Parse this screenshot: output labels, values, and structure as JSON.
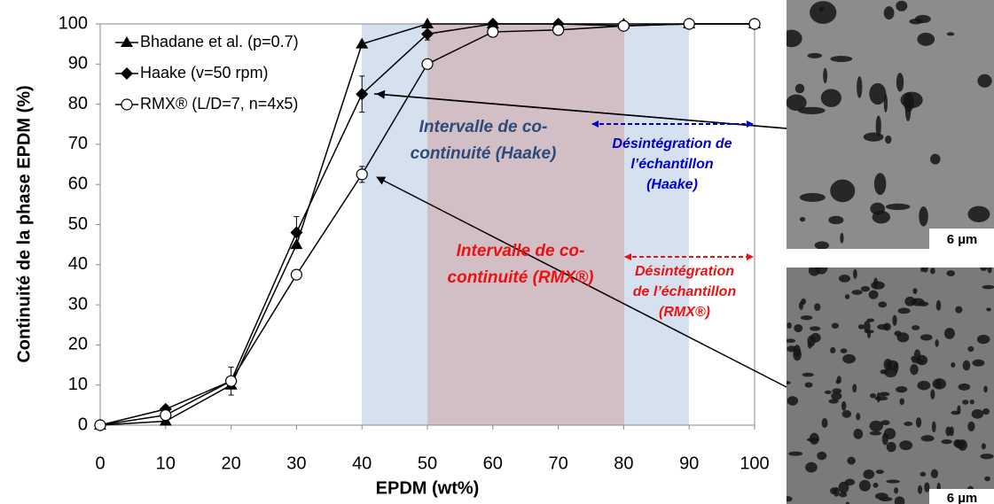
{
  "chart_data": {
    "type": "line",
    "x_label": "EPDM (wt%)",
    "y_label": "Continuité de la phase EPDM (%)",
    "x": [
      0,
      10,
      20,
      30,
      40,
      50,
      60,
      70,
      80,
      90,
      100
    ],
    "xlim": [
      0,
      100
    ],
    "xticks": [
      0,
      10,
      20,
      30,
      40,
      50,
      60,
      70,
      80,
      90,
      100
    ],
    "ylim": [
      0,
      100
    ],
    "yticks": [
      0,
      10,
      20,
      30,
      40,
      50,
      60,
      70,
      80,
      90,
      100
    ],
    "series": [
      {
        "name": "Bhadane et al. (p=0.7)",
        "color": "#000000",
        "marker": "triangle",
        "values": [
          0,
          1,
          10,
          45,
          95,
          100,
          100,
          100,
          100,
          100,
          100
        ],
        "errors": [
          null,
          null,
          null,
          null,
          null,
          null,
          null,
          null,
          null,
          null,
          null
        ]
      },
      {
        "name": "Haake  (v=50 rpm)",
        "color": "#000000",
        "marker": "diamond",
        "values": [
          0,
          4,
          11,
          48,
          82.5,
          97.5,
          100,
          100,
          99.5,
          100,
          100
        ],
        "errors": [
          null,
          null,
          3.5,
          4,
          4.5,
          1.5,
          null,
          null,
          null,
          null,
          null
        ]
      },
      {
        "name": "RMX® (L/D=7, n=4x5)",
        "color": "#000000",
        "marker": "circle-open",
        "values": [
          0,
          2.5,
          11,
          37.5,
          62.5,
          90,
          98,
          98.5,
          99.5,
          100,
          100
        ],
        "errors": [
          null,
          null,
          null,
          null,
          2,
          null,
          null,
          null,
          null,
          null,
          null
        ]
      }
    ],
    "annotations": [
      {
        "lines": [
          "Intervalle de co-",
          "continuité (Haake)"
        ],
        "color": "#2e4a78"
      },
      {
        "lines": [
          "Désintégration de",
          "l’échantillon",
          "(Haake)"
        ],
        "color": "#0000cc"
      },
      {
        "lines": [
          "Intervalle de co-",
          "continuité (RMX®)"
        ],
        "color": "#ee1111"
      },
      {
        "lines": [
          "Désintégration",
          "de l’échantillon",
          "(RMX®)"
        ],
        "color": "#ee1111"
      }
    ],
    "image_scale_labels": [
      "6 µm",
      "6 µm"
    ]
  }
}
